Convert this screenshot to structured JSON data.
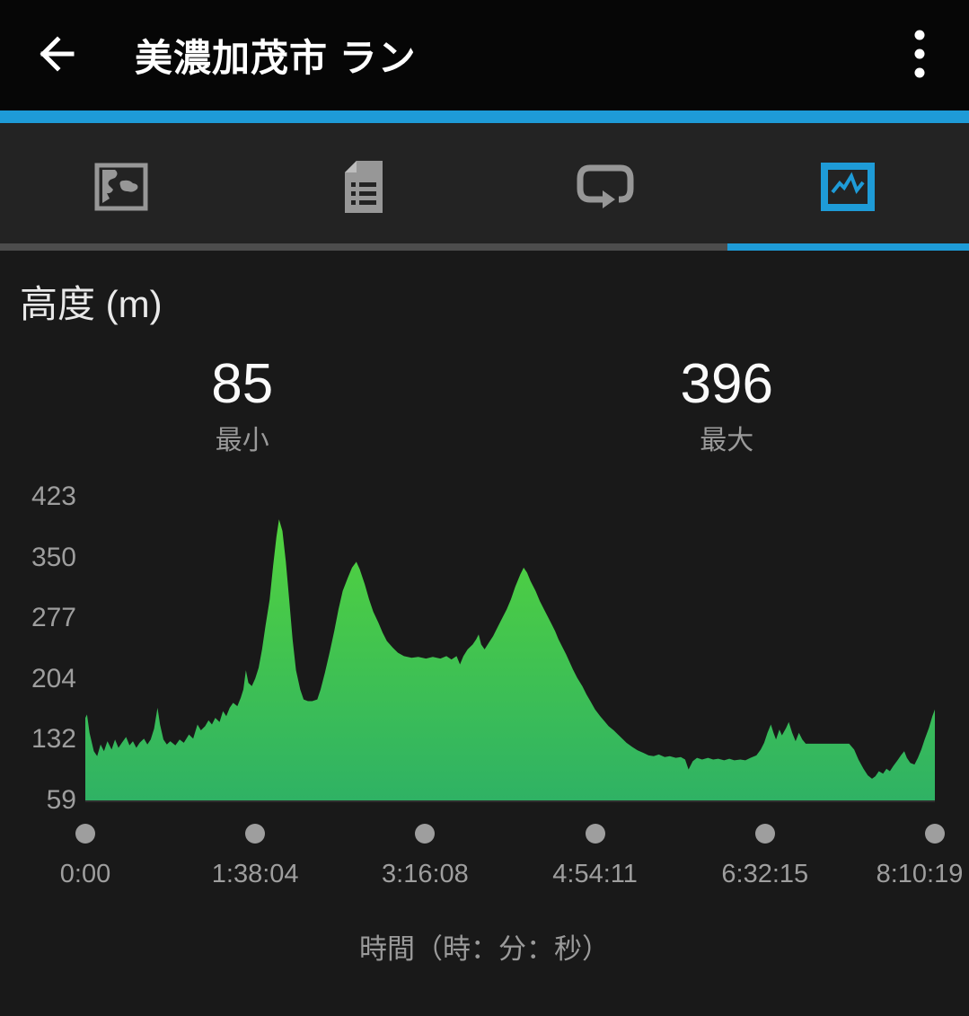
{
  "header": {
    "title": "美濃加茂市 ラン",
    "back_icon": "arrow-left",
    "menu_icon": "vertical-kebab"
  },
  "tabs": [
    {
      "id": "map",
      "icon": "map-icon",
      "active": false
    },
    {
      "id": "stats",
      "icon": "document-list-icon",
      "active": false
    },
    {
      "id": "laps",
      "icon": "lap-loop-icon",
      "active": false
    },
    {
      "id": "charts",
      "icon": "chart-icon",
      "active": true
    }
  ],
  "colors": {
    "accent_blue": "#1e9bd7",
    "inactive_icon_gray": "#979797",
    "area_fill_top": "#52d33e",
    "area_fill_bottom": "#2fb264"
  },
  "chart_data": {
    "type": "area",
    "title": "高度 (m)",
    "stats": [
      {
        "value": "85",
        "label": "最小"
      },
      {
        "value": "396",
        "label": "最大"
      }
    ],
    "y_ticks": [
      "423",
      "350",
      "277",
      "204",
      "132",
      "59"
    ],
    "x_ticks": [
      "0:00",
      "1:38:04",
      "3:16:08",
      "4:54:11",
      "6:32:15",
      "8:10:19"
    ],
    "xlabel": "時間（時：分：秒）",
    "ylim": [
      59,
      423
    ],
    "grid": false,
    "legend": "none",
    "series": [
      {
        "name": "elevation_m",
        "points": [
          [
            0.0,
            158
          ],
          [
            0.002,
            162
          ],
          [
            0.005,
            140
          ],
          [
            0.01,
            118
          ],
          [
            0.014,
            112
          ],
          [
            0.018,
            126
          ],
          [
            0.022,
            118
          ],
          [
            0.026,
            130
          ],
          [
            0.031,
            120
          ],
          [
            0.035,
            132
          ],
          [
            0.039,
            122
          ],
          [
            0.043,
            128
          ],
          [
            0.048,
            135
          ],
          [
            0.052,
            125
          ],
          [
            0.056,
            130
          ],
          [
            0.06,
            122
          ],
          [
            0.064,
            128
          ],
          [
            0.069,
            133
          ],
          [
            0.073,
            126
          ],
          [
            0.077,
            132
          ],
          [
            0.081,
            145
          ],
          [
            0.085,
            170
          ],
          [
            0.088,
            150
          ],
          [
            0.092,
            132
          ],
          [
            0.096,
            126
          ],
          [
            0.1,
            130
          ],
          [
            0.106,
            125
          ],
          [
            0.111,
            132
          ],
          [
            0.116,
            128
          ],
          [
            0.122,
            138
          ],
          [
            0.127,
            133
          ],
          [
            0.132,
            150
          ],
          [
            0.136,
            143
          ],
          [
            0.141,
            148
          ],
          [
            0.145,
            155
          ],
          [
            0.149,
            150
          ],
          [
            0.153,
            158
          ],
          [
            0.158,
            153
          ],
          [
            0.162,
            166
          ],
          [
            0.166,
            160
          ],
          [
            0.17,
            170
          ],
          [
            0.174,
            176
          ],
          [
            0.179,
            172
          ],
          [
            0.183,
            182
          ],
          [
            0.186,
            192
          ],
          [
            0.189,
            215
          ],
          [
            0.192,
            200
          ],
          [
            0.196,
            196
          ],
          [
            0.2,
            205
          ],
          [
            0.204,
            218
          ],
          [
            0.208,
            240
          ],
          [
            0.212,
            268
          ],
          [
            0.217,
            300
          ],
          [
            0.221,
            340
          ],
          [
            0.225,
            375
          ],
          [
            0.228,
            396
          ],
          [
            0.232,
            382
          ],
          [
            0.236,
            345
          ],
          [
            0.24,
            300
          ],
          [
            0.244,
            252
          ],
          [
            0.248,
            215
          ],
          [
            0.253,
            192
          ],
          [
            0.257,
            180
          ],
          [
            0.262,
            178
          ],
          [
            0.267,
            178
          ],
          [
            0.273,
            180
          ],
          [
            0.277,
            192
          ],
          [
            0.282,
            212
          ],
          [
            0.288,
            238
          ],
          [
            0.293,
            262
          ],
          [
            0.298,
            288
          ],
          [
            0.303,
            310
          ],
          [
            0.309,
            326
          ],
          [
            0.314,
            338
          ],
          [
            0.319,
            345
          ],
          [
            0.323,
            336
          ],
          [
            0.329,
            318
          ],
          [
            0.334,
            300
          ],
          [
            0.339,
            285
          ],
          [
            0.345,
            272
          ],
          [
            0.35,
            260
          ],
          [
            0.355,
            250
          ],
          [
            0.362,
            242
          ],
          [
            0.368,
            236
          ],
          [
            0.375,
            232
          ],
          [
            0.384,
            230
          ],
          [
            0.392,
            231
          ],
          [
            0.401,
            229
          ],
          [
            0.409,
            231
          ],
          [
            0.418,
            229
          ],
          [
            0.425,
            232
          ],
          [
            0.431,
            228
          ],
          [
            0.437,
            232
          ],
          [
            0.441,
            222
          ],
          [
            0.445,
            232
          ],
          [
            0.45,
            240
          ],
          [
            0.456,
            246
          ],
          [
            0.46,
            252
          ],
          [
            0.463,
            258
          ],
          [
            0.466,
            246
          ],
          [
            0.47,
            240
          ],
          [
            0.475,
            248
          ],
          [
            0.48,
            256
          ],
          [
            0.485,
            266
          ],
          [
            0.49,
            276
          ],
          [
            0.496,
            288
          ],
          [
            0.501,
            300
          ],
          [
            0.506,
            315
          ],
          [
            0.512,
            330
          ],
          [
            0.516,
            338
          ],
          [
            0.52,
            332
          ],
          [
            0.524,
            322
          ],
          [
            0.53,
            310
          ],
          [
            0.535,
            298
          ],
          [
            0.54,
            288
          ],
          [
            0.544,
            280
          ],
          [
            0.549,
            270
          ],
          [
            0.553,
            262
          ],
          [
            0.557,
            252
          ],
          [
            0.561,
            244
          ],
          [
            0.566,
            234
          ],
          [
            0.57,
            225
          ],
          [
            0.574,
            216
          ],
          [
            0.579,
            206
          ],
          [
            0.585,
            196
          ],
          [
            0.59,
            186
          ],
          [
            0.595,
            177
          ],
          [
            0.6,
            168
          ],
          [
            0.606,
            160
          ],
          [
            0.611,
            154
          ],
          [
            0.616,
            148
          ],
          [
            0.622,
            143
          ],
          [
            0.627,
            138
          ],
          [
            0.632,
            133
          ],
          [
            0.637,
            128
          ],
          [
            0.644,
            123
          ],
          [
            0.65,
            119
          ],
          [
            0.657,
            116
          ],
          [
            0.663,
            113
          ],
          [
            0.669,
            112
          ],
          [
            0.675,
            114
          ],
          [
            0.682,
            111
          ],
          [
            0.688,
            112
          ],
          [
            0.695,
            110
          ],
          [
            0.701,
            111
          ],
          [
            0.706,
            108
          ],
          [
            0.71,
            96
          ],
          [
            0.715,
            106
          ],
          [
            0.72,
            110
          ],
          [
            0.726,
            108
          ],
          [
            0.733,
            110
          ],
          [
            0.739,
            108
          ],
          [
            0.745,
            109
          ],
          [
            0.752,
            107
          ],
          [
            0.758,
            109
          ],
          [
            0.764,
            107
          ],
          [
            0.771,
            108
          ],
          [
            0.777,
            107
          ],
          [
            0.783,
            110
          ],
          [
            0.79,
            113
          ],
          [
            0.795,
            120
          ],
          [
            0.799,
            128
          ],
          [
            0.803,
            140
          ],
          [
            0.807,
            150
          ],
          [
            0.81,
            140
          ],
          [
            0.813,
            132
          ],
          [
            0.817,
            144
          ],
          [
            0.82,
            137
          ],
          [
            0.825,
            146
          ],
          [
            0.828,
            153
          ],
          [
            0.832,
            140
          ],
          [
            0.836,
            130
          ],
          [
            0.84,
            140
          ],
          [
            0.844,
            132
          ],
          [
            0.848,
            127
          ],
          [
            0.856,
            127
          ],
          [
            0.867,
            127
          ],
          [
            0.877,
            127
          ],
          [
            0.888,
            127
          ],
          [
            0.899,
            127
          ],
          [
            0.905,
            120
          ],
          [
            0.91,
            108
          ],
          [
            0.916,
            97
          ],
          [
            0.921,
            89
          ],
          [
            0.926,
            85
          ],
          [
            0.93,
            88
          ],
          [
            0.934,
            94
          ],
          [
            0.939,
            91
          ],
          [
            0.943,
            97
          ],
          [
            0.947,
            94
          ],
          [
            0.951,
            100
          ],
          [
            0.956,
            107
          ],
          [
            0.96,
            113
          ],
          [
            0.964,
            118
          ],
          [
            0.967,
            110
          ],
          [
            0.971,
            104
          ],
          [
            0.976,
            102
          ],
          [
            0.98,
            110
          ],
          [
            0.984,
            120
          ],
          [
            0.988,
            132
          ],
          [
            0.993,
            146
          ],
          [
            0.997,
            160
          ],
          [
            1.0,
            168
          ]
        ]
      }
    ]
  }
}
